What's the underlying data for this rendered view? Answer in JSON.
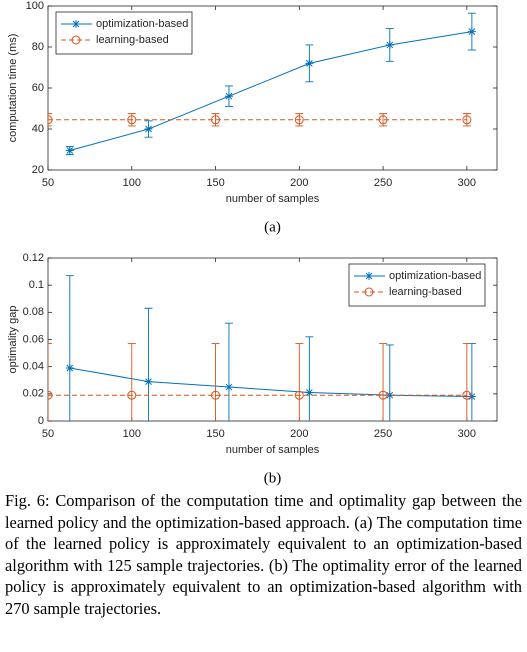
{
  "chart_data": [
    {
      "type": "line",
      "subcaption": "(a)",
      "x_label": "number of samples",
      "y_label": "computation time (ms)",
      "xlim": [
        50,
        318
      ],
      "xticks": [
        50,
        100,
        150,
        200,
        250,
        300
      ],
      "ylim": [
        20,
        100
      ],
      "yticks": [
        20,
        40,
        60,
        80,
        100
      ],
      "grid": false,
      "legend": "upper left",
      "series": [
        {
          "name": "optimization-based",
          "color": "#0072bd",
          "marker": "asterisk",
          "dash": false,
          "x": [
            63,
            110,
            158,
            206,
            254,
            303
          ],
          "values": [
            29.5,
            40,
            56,
            72,
            81,
            87.5
          ],
          "errors": [
            2,
            4,
            5,
            9,
            8,
            9
          ]
        },
        {
          "name": "learning-based",
          "color": "#d95319",
          "marker": "circle",
          "dash": true,
          "x": [
            50,
            100,
            150,
            200,
            250,
            300
          ],
          "values": [
            44.5,
            44.5,
            44.5,
            44.5,
            44.5,
            44.5
          ],
          "errors": [
            3,
            3,
            3,
            3,
            3,
            3
          ]
        }
      ]
    },
    {
      "type": "line",
      "subcaption": "(b)",
      "x_label": "number of samples",
      "y_label": "optimality gap",
      "xlim": [
        50,
        318
      ],
      "xticks": [
        50,
        100,
        150,
        200,
        250,
        300
      ],
      "ylim": [
        0,
        0.12
      ],
      "yticks": [
        0,
        0.02,
        0.04,
        0.06,
        0.08,
        0.1,
        0.12
      ],
      "grid": false,
      "legend": "upper right",
      "series": [
        {
          "name": "optimization-based",
          "color": "#0072bd",
          "marker": "asterisk",
          "dash": false,
          "x": [
            63,
            110,
            158,
            206,
            254,
            303
          ],
          "values": [
            0.039,
            0.029,
            0.025,
            0.021,
            0.019,
            0.018
          ],
          "errors": [
            0.068,
            0.054,
            0.047,
            0.041,
            0.037,
            0.039
          ]
        },
        {
          "name": "learning-based",
          "color": "#d95319",
          "marker": "circle",
          "dash": true,
          "x": [
            50,
            100,
            150,
            200,
            250,
            300
          ],
          "values": [
            0.019,
            0.019,
            0.019,
            0.019,
            0.019,
            0.019
          ],
          "errors": [
            0.038,
            0.038,
            0.038,
            0.038,
            0.038,
            0.038
          ]
        }
      ]
    }
  ],
  "caption": "Fig. 6: Comparison of the computation time and optimality gap between the learned policy and the optimization-based approach. (a) The computation time of the learned policy is approximately equivalent to an optimization-based algorithm with 125 sample trajectories. (b) The optimality error of the learned policy is approximately equivalent to an optimization-based algorithm with 270 sample trajectories."
}
